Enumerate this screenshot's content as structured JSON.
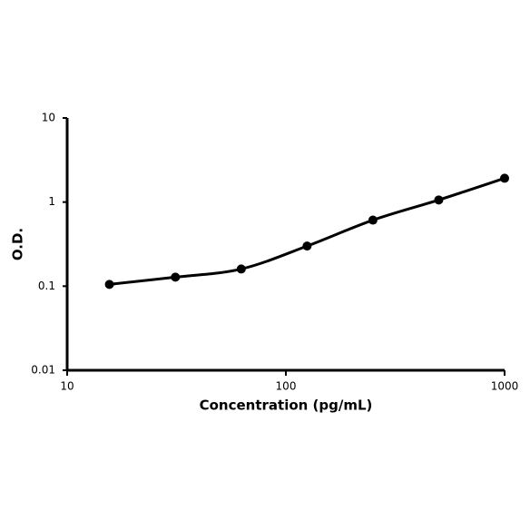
{
  "chart_data": {
    "type": "line",
    "x_label": "Concentration (pg/mL)",
    "y_label": "O.D.",
    "x": [
      15.6,
      31.25,
      62.5,
      125,
      250,
      500,
      1000
    ],
    "values": [
      0.105,
      0.128,
      0.16,
      0.3,
      0.61,
      1.06,
      1.92
    ],
    "color": "#000000",
    "xscale": "log",
    "yscale": "log",
    "xlim": [
      10,
      1000
    ],
    "xticks": [
      10,
      100,
      1000
    ],
    "ylim": [
      0.01,
      10
    ],
    "yticks": [
      0.01,
      0.1,
      1,
      10
    ],
    "grid": false
  }
}
